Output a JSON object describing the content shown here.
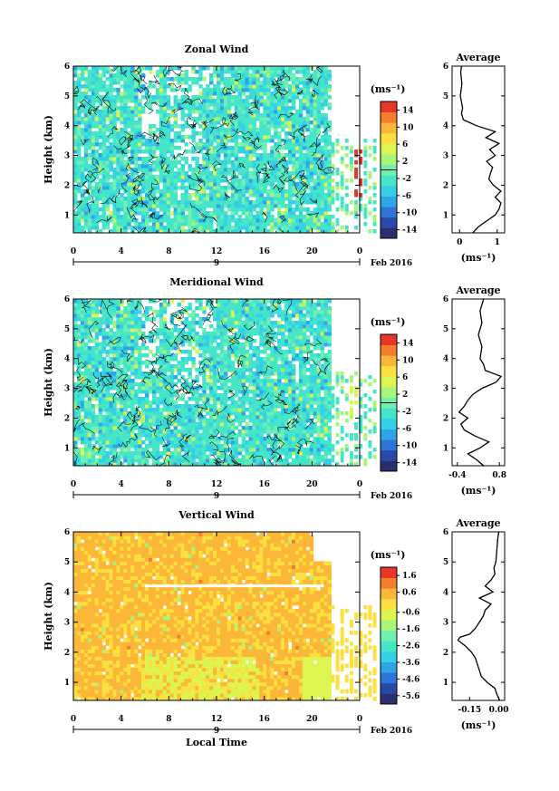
{
  "chart_data": [
    {
      "type": "heatmap",
      "title": "Zonal Wind",
      "xlabel": "",
      "ylabel": "Height (km)",
      "xlim": [
        0,
        24
      ],
      "ylim": [
        0.4,
        6
      ],
      "xticks": [
        "0",
        "4",
        "8",
        "12",
        "16",
        "20",
        "0"
      ],
      "yticks": [
        "1",
        "2",
        "3",
        "4",
        "5",
        "6"
      ],
      "date_marker": "9",
      "date_label": "Feb 2016",
      "colorbar": {
        "label": "(ms⁻¹)",
        "ticks": [
          "14",
          "10",
          "6",
          "2",
          "-2",
          "-6",
          "-10",
          "-14"
        ],
        "range": [
          -16,
          16
        ]
      },
      "profile": {
        "title": "Average",
        "xlabel": "(ms⁻¹)",
        "xticks": [
          "0",
          "1"
        ],
        "xlim": [
          -0.2,
          1.2
        ],
        "heights": [
          0.4,
          0.6,
          0.8,
          1.0,
          1.2,
          1.4,
          1.6,
          1.8,
          2.0,
          2.2,
          2.4,
          2.6,
          2.8,
          3.0,
          3.2,
          3.4,
          3.6,
          3.8,
          4.0,
          4.2,
          4.4,
          4.6,
          5.0,
          5.4,
          5.8,
          6.0
        ],
        "values": [
          0.35,
          0.5,
          0.72,
          0.95,
          1.05,
          1.1,
          0.95,
          1.1,
          0.9,
          0.78,
          0.82,
          0.88,
          0.72,
          0.95,
          0.8,
          1.05,
          0.7,
          0.95,
          0.45,
          0.1,
          0.05,
          0.08,
          0.02,
          0.06,
          0.03,
          0.05
        ]
      }
    },
    {
      "type": "heatmap",
      "title": "Meridional Wind",
      "xlabel": "",
      "ylabel": "Height (km)",
      "xlim": [
        0,
        24
      ],
      "ylim": [
        0.4,
        6
      ],
      "xticks": [
        "0",
        "4",
        "8",
        "12",
        "16",
        "20",
        "0"
      ],
      "yticks": [
        "1",
        "2",
        "3",
        "4",
        "5",
        "6"
      ],
      "date_marker": "9",
      "date_label": "Feb 2016",
      "colorbar": {
        "label": "(ms⁻¹)",
        "ticks": [
          "14",
          "10",
          "6",
          "2",
          "-2",
          "-6",
          "-10",
          "-14"
        ],
        "range": [
          -16,
          16
        ]
      },
      "profile": {
        "title": "Average",
        "xlabel": "(ms⁻¹)",
        "xticks": [
          "-0.4",
          "0.8"
        ],
        "xlim": [
          -0.55,
          0.95
        ],
        "heights": [
          0.4,
          0.6,
          0.8,
          1.0,
          1.2,
          1.4,
          1.6,
          1.8,
          2.0,
          2.2,
          2.4,
          2.6,
          2.8,
          3.0,
          3.2,
          3.4,
          3.6,
          3.8,
          4.0,
          4.4,
          4.8,
          5.2,
          5.6,
          6.0
        ],
        "values": [
          0.35,
          0.15,
          -0.1,
          0.25,
          0.5,
          0.1,
          -0.2,
          -0.3,
          -0.1,
          -0.35,
          -0.2,
          -0.1,
          0.05,
          0.3,
          0.7,
          0.85,
          0.4,
          0.35,
          0.25,
          0.3,
          0.2,
          0.3,
          0.25,
          0.35
        ]
      }
    },
    {
      "type": "heatmap",
      "title": "Vertical Wind",
      "xlabel": "Local Time",
      "ylabel": "Height (km)",
      "xlim": [
        0,
        24
      ],
      "ylim": [
        0.4,
        6
      ],
      "xticks": [
        "0",
        "4",
        "8",
        "12",
        "16",
        "20",
        "0"
      ],
      "yticks": [
        "1",
        "2",
        "3",
        "4",
        "5",
        "6"
      ],
      "date_marker": "9",
      "date_label": "Feb 2016",
      "colorbar": {
        "label": "(ms⁻¹)",
        "ticks": [
          "1.6",
          "0.6",
          "-0.6",
          "-1.6",
          "-2.6",
          "-3.6",
          "-4.6",
          "-5.6"
        ],
        "range": [
          -6.1,
          2.1
        ]
      },
      "profile": {
        "title": "Average",
        "xlabel": "(ms⁻¹)",
        "xticks": [
          "-0.15",
          "0.00"
        ],
        "xlim": [
          -0.24,
          0.03
        ],
        "heights": [
          0.4,
          0.6,
          0.8,
          1.0,
          1.2,
          1.4,
          1.6,
          1.8,
          2.0,
          2.2,
          2.4,
          2.5,
          2.6,
          2.8,
          3.0,
          3.2,
          3.4,
          3.6,
          3.8,
          4.0,
          4.2,
          4.4,
          4.6,
          4.8,
          5.0,
          5.4,
          5.8,
          6.0
        ],
        "values": [
          0.005,
          -0.01,
          -0.02,
          -0.06,
          -0.09,
          -0.1,
          -0.11,
          -0.12,
          -0.14,
          -0.17,
          -0.21,
          -0.2,
          -0.15,
          -0.12,
          -0.1,
          -0.08,
          -0.07,
          -0.04,
          -0.1,
          -0.03,
          -0.07,
          -0.04,
          -0.02,
          -0.025,
          -0.015,
          -0.01,
          -0.005,
          0.0
        ]
      }
    }
  ]
}
